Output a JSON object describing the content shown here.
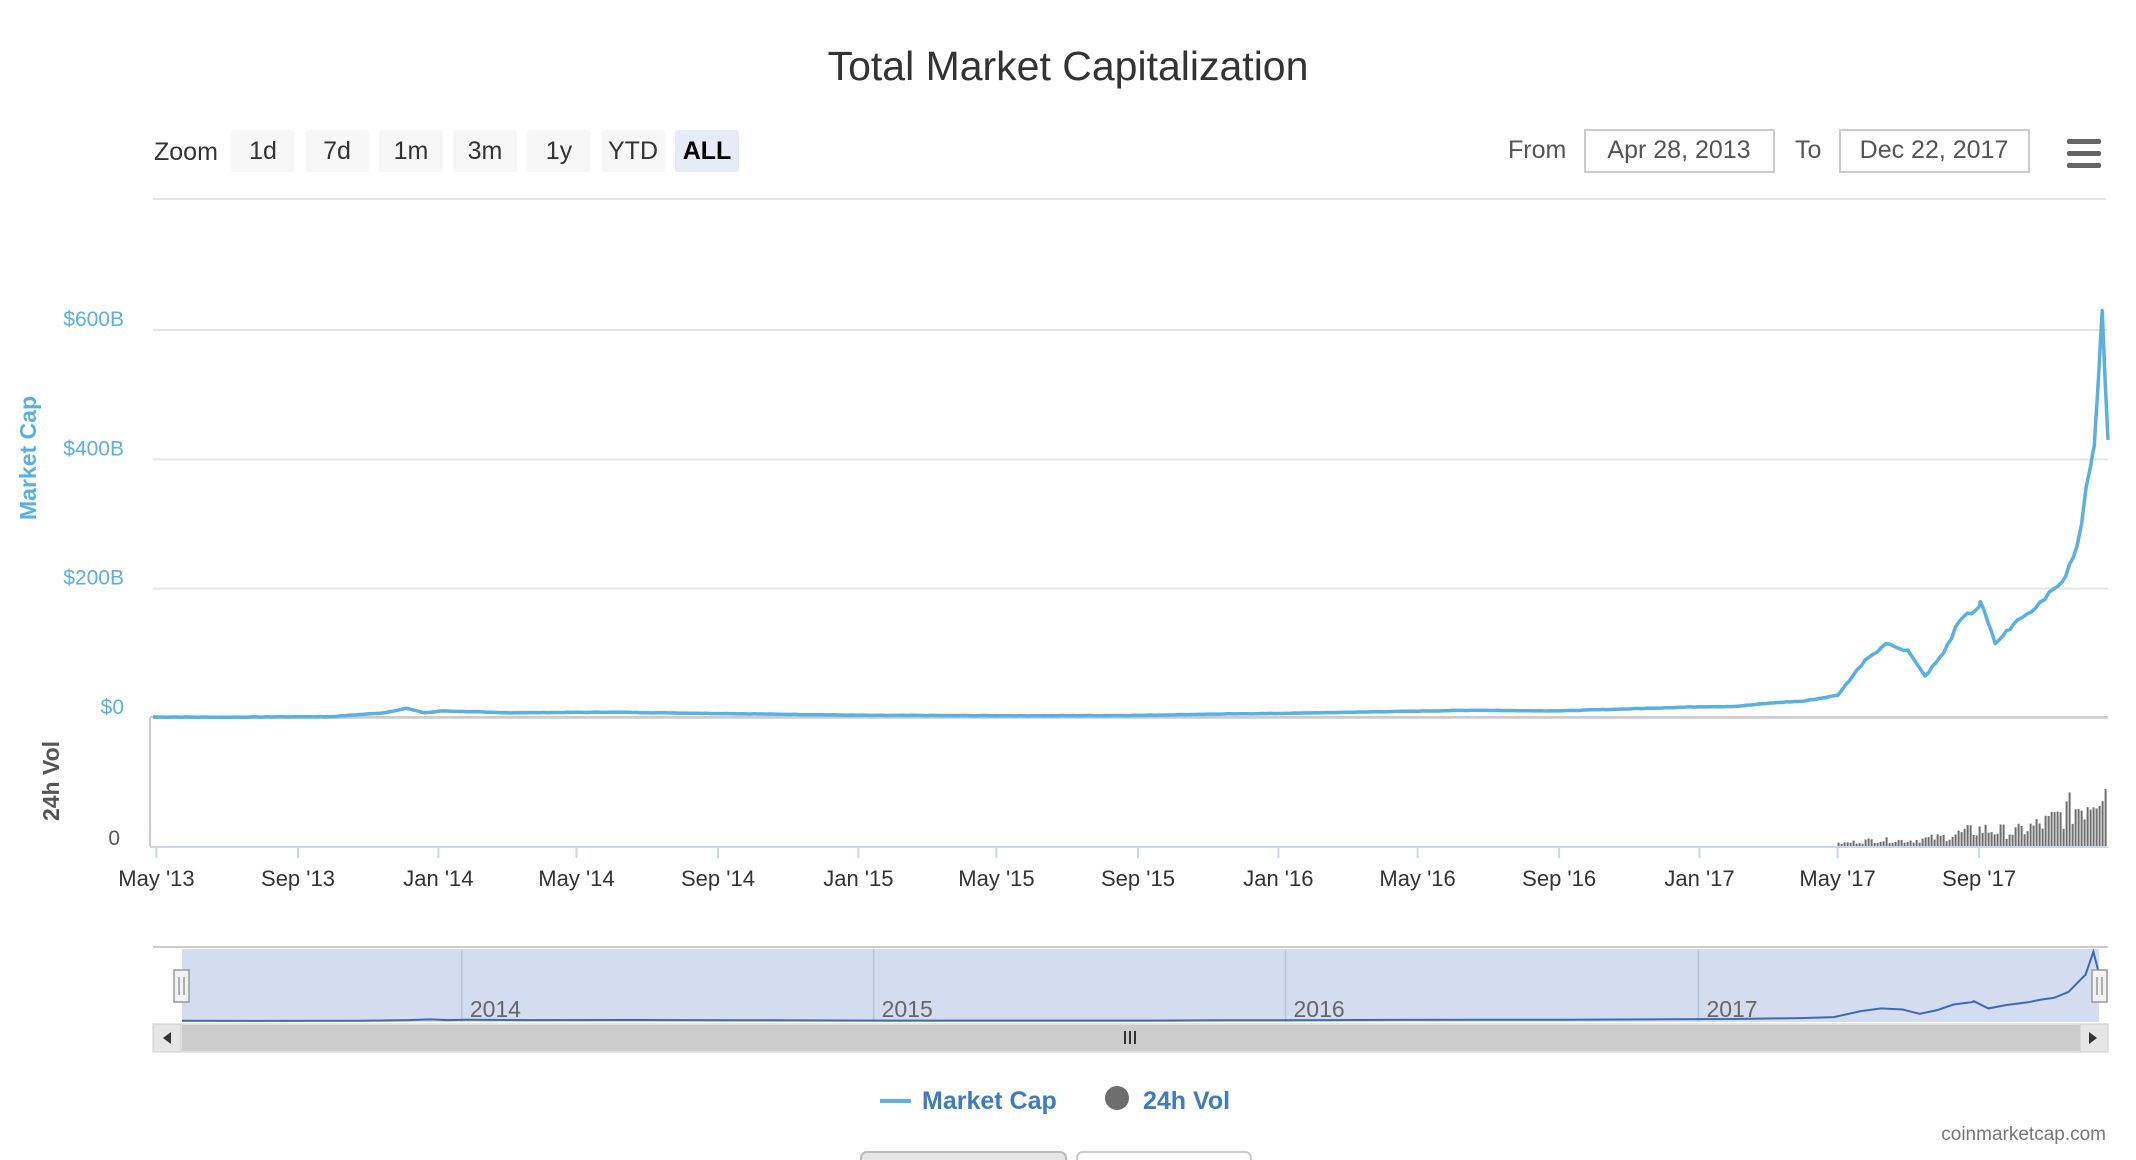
{
  "chart_data": {
    "type": "line",
    "title": "Total Market Capitalization",
    "series": [
      {
        "name": "Market Cap",
        "color": "#5ab0e0",
        "unit": "USD billions",
        "points": [
          [
            "2013-04-28",
            1.6
          ],
          [
            "2013-07-01",
            1.3
          ],
          [
            "2013-10-01",
            2.2
          ],
          [
            "2013-11-15",
            8
          ],
          [
            "2013-12-04",
            15
          ],
          [
            "2013-12-20",
            8
          ],
          [
            "2014-01-05",
            11
          ],
          [
            "2014-03-01",
            8
          ],
          [
            "2014-06-01",
            9
          ],
          [
            "2014-09-01",
            7
          ],
          [
            "2015-01-15",
            4
          ],
          [
            "2015-06-01",
            3.5
          ],
          [
            "2015-09-01",
            4
          ],
          [
            "2015-11-04",
            6
          ],
          [
            "2016-01-01",
            7
          ],
          [
            "2016-06-17",
            12
          ],
          [
            "2016-09-01",
            11
          ],
          [
            "2017-01-03",
            17.5
          ],
          [
            "2017-02-01",
            18
          ],
          [
            "2017-03-10",
            24
          ],
          [
            "2017-04-01",
            26
          ],
          [
            "2017-05-01",
            35
          ],
          [
            "2017-05-25",
            90
          ],
          [
            "2017-06-12",
            115
          ],
          [
            "2017-06-20",
            110
          ],
          [
            "2017-07-01",
            105
          ],
          [
            "2017-07-16",
            65
          ],
          [
            "2017-08-01",
            100
          ],
          [
            "2017-08-15",
            150
          ],
          [
            "2017-09-01",
            172
          ],
          [
            "2017-09-02",
            180
          ],
          [
            "2017-09-15",
            115
          ],
          [
            "2017-10-01",
            145
          ],
          [
            "2017-10-20",
            170
          ],
          [
            "2017-11-01",
            195
          ],
          [
            "2017-11-12",
            210
          ],
          [
            "2017-11-25",
            265
          ],
          [
            "2017-12-07",
            390
          ],
          [
            "2017-12-10",
            420
          ],
          [
            "2017-12-17",
            630
          ],
          [
            "2017-12-22",
            430
          ]
        ]
      },
      {
        "name": "24h Vol",
        "color": "#6e6e6e",
        "points": [
          [
            "2017-05-01",
            0.03
          ],
          [
            "2017-06-01",
            0.08
          ],
          [
            "2017-07-01",
            0.07
          ],
          [
            "2017-08-01",
            0.12
          ],
          [
            "2017-09-01",
            0.22
          ],
          [
            "2017-10-01",
            0.18
          ],
          [
            "2017-11-01",
            0.32
          ],
          [
            "2017-11-15",
            0.45
          ],
          [
            "2017-12-01",
            0.55
          ],
          [
            "2017-12-10",
            0.72
          ],
          [
            "2017-12-20",
            1.0
          ],
          [
            "2017-12-22",
            0.85
          ]
        ]
      }
    ],
    "ylabel": "Market Cap",
    "ylabel2": "24h Vol",
    "y_ticks": [
      "$600B",
      "$400B",
      "$200B",
      "$0"
    ],
    "y_tick_values": [
      600,
      400,
      200,
      0
    ],
    "ylim": [
      0,
      600
    ],
    "y2_ticks": [
      "0"
    ],
    "x_ticks": [
      "May '13",
      "Sep '13",
      "Jan '14",
      "May '14",
      "Sep '14",
      "Jan '15",
      "May '15",
      "Sep '15",
      "Jan '16",
      "May '16",
      "Sep '16",
      "Jan '17",
      "May '17",
      "Sep '17"
    ],
    "x_tick_dates": [
      "2013-05-01",
      "2013-09-01",
      "2014-01-01",
      "2014-05-01",
      "2014-09-01",
      "2015-01-01",
      "2015-05-01",
      "2015-09-01",
      "2016-01-01",
      "2016-05-01",
      "2016-09-01",
      "2017-01-01",
      "2017-05-01",
      "2017-09-01"
    ],
    "xlim": [
      "2013-04-28",
      "2017-12-22"
    ],
    "grid": true,
    "legend_position": "bottom-center",
    "navigator_labels": [
      "2014",
      "2015",
      "2016",
      "2017"
    ],
    "navigator_label_dates": [
      "2014-01-01",
      "2015-01-01",
      "2016-01-01",
      "2017-01-01"
    ]
  },
  "toolbar": {
    "zoom_label": "Zoom",
    "zoom_buttons": [
      "1d",
      "7d",
      "1m",
      "3m",
      "1y",
      "YTD",
      "ALL"
    ],
    "active_zoom": "ALL",
    "from_label": "From",
    "from_value": "Apr 28, 2013",
    "to_label": "To",
    "to_value": "Dec 22, 2017",
    "menu_icon": "hamburger-menu-icon"
  },
  "legend": {
    "items": [
      "Market Cap",
      "24h Vol"
    ]
  },
  "credit": "coinmarketcap.com",
  "colors": {
    "accent": "#5ab0e0",
    "volume": "#6e6e6e",
    "navigator_line": "#3e6ab5",
    "navigator_mask": "#d3ddef",
    "legend_text": "#3e7bbf",
    "active_button": "#e6ebf5"
  }
}
